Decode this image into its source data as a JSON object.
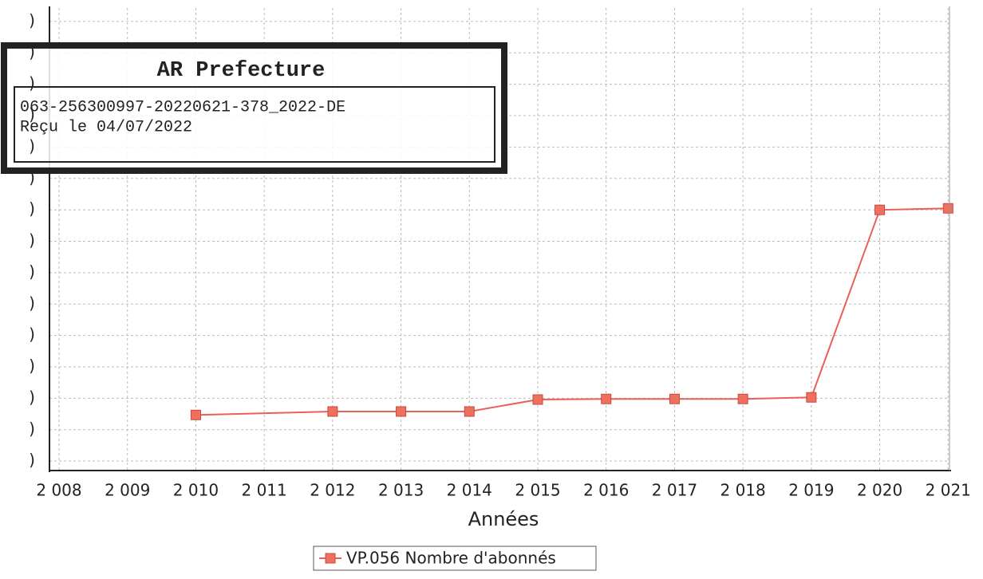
{
  "chart_data": {
    "type": "line",
    "x_label": "Années",
    "x": [
      2010,
      2012,
      2013,
      2014,
      2015,
      2016,
      2017,
      2018,
      2019,
      2020,
      2021
    ],
    "series": [
      {
        "name": "VP.056 Nombre d'abonnés",
        "color": "#e8605a",
        "values": [
          1.47,
          1.58,
          1.58,
          1.58,
          1.96,
          1.98,
          1.98,
          1.98,
          2.03,
          8.0,
          8.05
        ]
      }
    ],
    "xlim": [
      2007.86,
      2021.02
    ],
    "xticks": [
      {
        "value": 2008,
        "label": "2 008"
      },
      {
        "value": 2009,
        "label": "2 009"
      },
      {
        "value": 2010,
        "label": "2 010"
      },
      {
        "value": 2011,
        "label": "2 011"
      },
      {
        "value": 2012,
        "label": "2 012"
      },
      {
        "value": 2013,
        "label": "2 013"
      },
      {
        "value": 2014,
        "label": "2 014"
      },
      {
        "value": 2015,
        "label": "2 015"
      },
      {
        "value": 2016,
        "label": "2 016"
      },
      {
        "value": 2017,
        "label": "2 017"
      },
      {
        "value": 2018,
        "label": "2 018"
      },
      {
        "value": 2019,
        "label": "2 019"
      },
      {
        "value": 2020,
        "label": "2 020"
      },
      {
        "value": 2021,
        "label": "2 021"
      }
    ],
    "ylim": [
      -0.3,
      14.43
    ],
    "yticks": [
      {
        "value": 0,
        "label": ")"
      },
      {
        "value": 1,
        "label": ")"
      },
      {
        "value": 2,
        "label": ")"
      },
      {
        "value": 3,
        "label": ")"
      },
      {
        "value": 4,
        "label": ")"
      },
      {
        "value": 5,
        "label": ")"
      },
      {
        "value": 6,
        "label": ")"
      },
      {
        "value": 7,
        "label": ")"
      },
      {
        "value": 8,
        "label": ")"
      },
      {
        "value": 9,
        "label": ")"
      },
      {
        "value": 10,
        "label": ")"
      },
      {
        "value": 11,
        "label": ")"
      },
      {
        "value": 12,
        "label": ")"
      },
      {
        "value": 13,
        "label": ")"
      },
      {
        "value": 14,
        "label": ")"
      }
    ],
    "grid": true
  },
  "stamp": {
    "title": "AR Prefecture",
    "lines": [
      "063-256300997-20220621-378_2022-DE",
      "Reçu le 04/07/2022"
    ]
  }
}
